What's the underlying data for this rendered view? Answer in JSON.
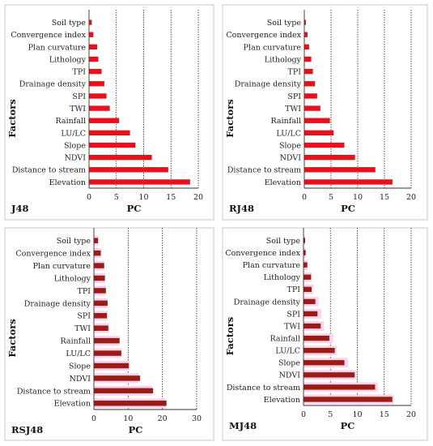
{
  "chart_data": [
    {
      "type": "bar",
      "orientation": "horizontal",
      "model_label": "J48",
      "categories": [
        "Soil type",
        "Convergence index",
        "Plan curvature",
        "Lithology",
        "TPI",
        "Drainage density",
        "SPI",
        "TWI",
        "Rainfall",
        "LU/LC",
        "Slope",
        "NDVI",
        "Distance to stream",
        "Elevation"
      ],
      "series": [
        {
          "values": [
            0.5,
            0.8,
            1.5,
            1.7,
            2.3,
            2.8,
            3.2,
            3.8,
            5.5,
            7.5,
            8.5,
            11.5,
            14.5,
            18.5
          ],
          "color": "#e8101a"
        }
      ],
      "xlabel": "PC",
      "ylabel": "Factors",
      "xlim": [
        0,
        20
      ],
      "xticks": [
        "0",
        "5",
        "10",
        "15",
        "20"
      ],
      "grid": "vertical-dotted"
    },
    {
      "type": "bar",
      "orientation": "horizontal",
      "model_label": "RJ48",
      "categories": [
        "Soil type",
        "Convergence index",
        "Plan curvature",
        "Lithology",
        "TPI",
        "Drainage density",
        "SPI",
        "TWI",
        "Rainfall",
        "LU/LC",
        "Slope",
        "NDVI",
        "Distance to stream",
        "Elevation"
      ],
      "series": [
        {
          "values": [
            0.3,
            0.6,
            0.9,
            1.3,
            1.6,
            2.0,
            2.4,
            3.0,
            4.8,
            5.5,
            7.5,
            9.5,
            13.3,
            16.5
          ],
          "color": "#e8101a"
        }
      ],
      "xlabel": "PC",
      "ylabel": "Factors",
      "xlim": [
        0,
        20
      ],
      "xticks": [
        "0",
        "5",
        "10",
        "15",
        "20"
      ],
      "grid": "vertical-dotted"
    },
    {
      "type": "bar",
      "orientation": "horizontal",
      "model_label": "RSJ48",
      "categories": [
        "Soil type",
        "Convergence index",
        "Plan curvature",
        "Lithology",
        "TPI",
        "Drainage density",
        "SPI",
        "TWI",
        "Rainfall",
        "LU/LC",
        "Slope",
        "NDVI",
        "Distance to stream",
        "Elevation"
      ],
      "series": [
        {
          "values": [
            1.5,
            2.2,
            3.0,
            3.3,
            3.5,
            4.0,
            4.0,
            4.5,
            7.5,
            8.2,
            10.5,
            13.0,
            17.0,
            21.0
          ],
          "color": "#fbd3f2"
        },
        {
          "values": [
            1.2,
            2.0,
            3.0,
            3.2,
            3.5,
            4.0,
            3.8,
            4.2,
            7.5,
            8.0,
            10.2,
            13.5,
            17.3,
            21.2
          ],
          "color": "#9b1c12"
        }
      ],
      "xlabel": "PC",
      "ylabel": "Factors",
      "xlim": [
        0,
        30
      ],
      "xticks": [
        "0",
        "10",
        "20",
        "30"
      ],
      "grid": "vertical-dotted"
    },
    {
      "type": "bar",
      "orientation": "horizontal",
      "model_label": "MJ48",
      "categories": [
        "Soil type",
        "Convergence index",
        "Plan curvature",
        "Lithology",
        "TPI",
        "Drainage density",
        "SPI",
        "TWI",
        "Rainfall",
        "LU/LC",
        "Slope",
        "NDVI",
        "Distance to stream",
        "Elevation"
      ],
      "series": [
        {
          "values": [
            0.3,
            0.5,
            0.8,
            1.5,
            1.8,
            2.8,
            3.3,
            3.8,
            5.5,
            6.2,
            8.3,
            9.8,
            13.8,
            16.8
          ],
          "color": "#fbd3f2"
        },
        {
          "values": [
            0.3,
            0.4,
            0.7,
            1.4,
            1.5,
            2.2,
            2.6,
            3.2,
            4.8,
            5.8,
            7.6,
            9.5,
            13.3,
            16.5
          ],
          "color": "#9b1c12"
        }
      ],
      "xlabel": "PC",
      "ylabel": "Factors",
      "xlim": [
        0,
        20
      ],
      "xticks": [
        "0",
        "5",
        "10",
        "15",
        "20"
      ],
      "grid": "vertical-dotted"
    }
  ]
}
